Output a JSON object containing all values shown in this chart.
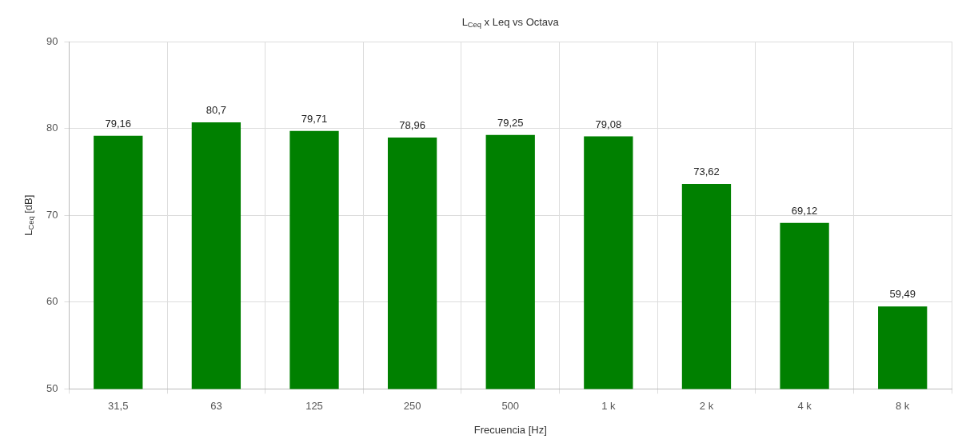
{
  "chart_data": {
    "type": "bar",
    "title": "L$_{Ceq}$ x Leq vs Octava",
    "xlabel": "Frecuencia [Hz]",
    "ylabel": "L$_{Ceq}$ [dB]",
    "categories": [
      "31,5",
      "63",
      "125",
      "250",
      "500",
      "1 k",
      "2 k",
      "4 k",
      "8 k"
    ],
    "values": [
      79.16,
      80.7,
      79.71,
      78.96,
      79.25,
      79.08,
      73.62,
      69.12,
      59.49
    ],
    "value_labels": [
      "79,16",
      "80,7",
      "79,71",
      "78,96",
      "79,25",
      "79,08",
      "73,62",
      "69,12",
      "59,49"
    ],
    "color": "#008000",
    "ylim": [
      50,
      90
    ],
    "yticks": [
      50,
      60,
      70,
      80,
      90
    ],
    "grid": true,
    "legend": false
  }
}
